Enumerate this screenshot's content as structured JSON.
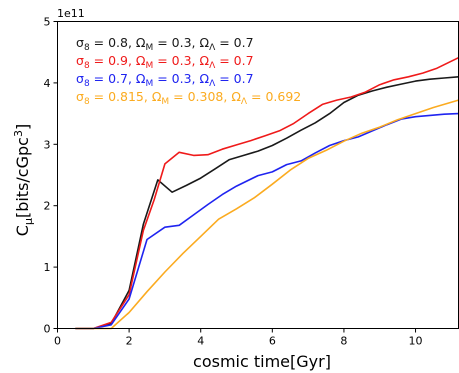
{
  "chart_data": {
    "type": "line",
    "xlabel": "cosmic time[Gyr]",
    "ylabel": "C_μ[bits/cGpc^3]",
    "offset_label": "1e11",
    "x_ticks": [
      "0",
      "2",
      "4",
      "6",
      "8",
      "10"
    ],
    "y_ticks": [
      "0",
      "1",
      "2",
      "3",
      "4",
      "5"
    ],
    "xlim": [
      0,
      11.2
    ],
    "ylim": [
      0,
      5
    ],
    "legend_position": "upper-left",
    "grid": false,
    "series": [
      {
        "name": "σ8 = 0.8, ΩM = 0.3, ΩΛ = 0.7",
        "legend": {
          "sym": "σ",
          "sub1": "8",
          "t1": " = 0.8, ",
          "sym2": "Ω",
          "sub2": "M",
          "t2": " = 0.3, ",
          "sym3": "Ω",
          "sub3": "Λ",
          "t3": " = 0.7"
        },
        "color": "#1a1a1a",
        "x": [
          0.5,
          1.0,
          1.5,
          2.0,
          2.4,
          2.8,
          3.2,
          3.6,
          4.0,
          4.4,
          4.8,
          5.2,
          5.6,
          6.0,
          6.4,
          6.8,
          7.2,
          7.6,
          8.0,
          8.4,
          8.8,
          9.2,
          9.6,
          10.0,
          10.4,
          10.8,
          11.2
        ],
        "y": [
          0.0,
          0.0,
          0.08,
          0.62,
          1.7,
          2.42,
          2.22,
          2.33,
          2.45,
          2.6,
          2.75,
          2.82,
          2.89,
          2.98,
          3.1,
          3.23,
          3.35,
          3.5,
          3.68,
          3.8,
          3.87,
          3.93,
          3.98,
          4.03,
          4.06,
          4.08,
          4.1
        ]
      },
      {
        "name": "σ8 = 0.9, ΩM = 0.3, ΩΛ = 0.7",
        "legend": {
          "sym": "σ",
          "sub1": "8",
          "t1": " = 0.9, ",
          "sym2": "Ω",
          "sub2": "M",
          "t2": " = 0.3, ",
          "sym3": "Ω",
          "sub3": "Λ",
          "t3": " = 0.7"
        },
        "color": "#ef1a1a",
        "x": [
          0.5,
          1.0,
          1.5,
          2.0,
          2.4,
          2.7,
          3.0,
          3.4,
          3.8,
          4.2,
          4.6,
          5.0,
          5.4,
          5.8,
          6.2,
          6.6,
          7.0,
          7.4,
          7.8,
          8.2,
          8.6,
          9.0,
          9.4,
          9.8,
          10.2,
          10.6,
          11.2
        ],
        "y": [
          0.0,
          0.0,
          0.1,
          0.55,
          1.6,
          2.1,
          2.68,
          2.87,
          2.82,
          2.83,
          2.92,
          2.99,
          3.06,
          3.14,
          3.22,
          3.34,
          3.5,
          3.65,
          3.72,
          3.77,
          3.85,
          3.97,
          4.05,
          4.1,
          4.16,
          4.24,
          4.41
        ]
      },
      {
        "name": "σ8 = 0.7, ΩM = 0.3, ΩΛ = 0.7",
        "legend": {
          "sym": "σ",
          "sub1": "8",
          "t1": " = 0.7, ",
          "sym2": "Ω",
          "sub2": "M",
          "t2": " = 0.3, ",
          "sym3": "Ω",
          "sub3": "Λ",
          "t3": " = 0.7"
        },
        "color": "#1f24f0",
        "x": [
          0.5,
          1.0,
          1.5,
          2.0,
          2.5,
          3.0,
          3.4,
          3.8,
          4.2,
          4.6,
          5.0,
          5.6,
          6.0,
          6.4,
          6.8,
          7.2,
          7.6,
          8.0,
          8.4,
          8.8,
          9.2,
          9.6,
          10.0,
          10.4,
          10.8,
          11.2
        ],
        "y": [
          0.0,
          0.0,
          0.06,
          0.48,
          1.45,
          1.65,
          1.68,
          1.85,
          2.02,
          2.18,
          2.32,
          2.49,
          2.55,
          2.67,
          2.73,
          2.86,
          2.98,
          3.06,
          3.12,
          3.22,
          3.32,
          3.41,
          3.45,
          3.47,
          3.49,
          3.5
        ]
      },
      {
        "name": "σ8 = 0.815, ΩM = 0.308, ΩΛ = 0.692",
        "legend": {
          "sym": "σ",
          "sub1": "8",
          "t1": " = 0.815, ",
          "sym2": "Ω",
          "sub2": "M",
          "t2": " = 0.308, ",
          "sym3": "Ω",
          "sub3": "Λ",
          "t3": " = 0.692"
        },
        "color": "#fbab20",
        "x": [
          0.5,
          1.0,
          1.5,
          2.0,
          2.5,
          3.0,
          3.5,
          4.0,
          4.5,
          5.0,
          5.5,
          6.0,
          6.5,
          7.0,
          7.5,
          8.0,
          8.5,
          9.0,
          9.5,
          10.0,
          10.5,
          11.2
        ],
        "y": [
          0.0,
          0.0,
          0.0,
          0.26,
          0.6,
          0.92,
          1.22,
          1.5,
          1.78,
          1.95,
          2.13,
          2.35,
          2.58,
          2.77,
          2.9,
          3.05,
          3.18,
          3.28,
          3.4,
          3.5,
          3.6,
          3.72
        ]
      }
    ]
  }
}
